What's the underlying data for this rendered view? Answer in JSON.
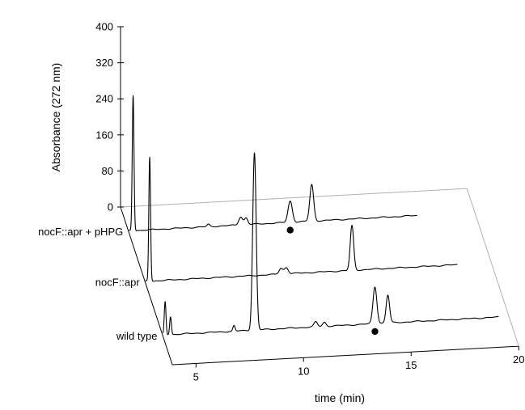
{
  "chart_data": {
    "type": "line",
    "subtype": "stacked-3d-chromatogram",
    "title": "",
    "xlabel": "time (min)",
    "ylabel": "Absorbance (272 nm)",
    "xlim": [
      3.9,
      20
    ],
    "ylim": [
      0,
      400
    ],
    "x_ticks": [
      5,
      10,
      15,
      20
    ],
    "y_ticks": [
      0,
      80,
      160,
      240,
      320,
      400
    ],
    "grid": false,
    "legend": "none",
    "series": [
      {
        "name": "nocF::apr + pHPG",
        "x_end": 17.3,
        "baseline": 3,
        "peaks": [
          {
            "t": 4.1,
            "h": 300,
            "w": 0.04
          },
          {
            "t": 7.6,
            "h": 5,
            "w": 0.06
          },
          {
            "t": 9.1,
            "h": 18,
            "w": 0.09
          },
          {
            "t": 9.35,
            "h": 15,
            "w": 0.08
          },
          {
            "t": 11.4,
            "h": 47,
            "w": 0.1
          },
          {
            "t": 12.4,
            "h": 81,
            "w": 0.09
          }
        ],
        "marker": {
          "x": 11.4,
          "symbol": "filled-circle"
        }
      },
      {
        "name": "nocF::apr",
        "x_end": 18.4,
        "baseline": 3,
        "peaks": [
          {
            "t": 4.1,
            "h": 275,
            "w": 0.04
          },
          {
            "t": 10.2,
            "h": 13,
            "w": 0.09
          },
          {
            "t": 10.45,
            "h": 14,
            "w": 0.09
          },
          {
            "t": 13.5,
            "h": 99,
            "w": 0.08
          }
        ]
      },
      {
        "name": "wild type",
        "x_end": 19.5,
        "baseline": 3,
        "peaks": [
          {
            "t": 4.0,
            "h": 73,
            "w": 0.04
          },
          {
            "t": 4.25,
            "h": 40,
            "w": 0.04
          },
          {
            "t": 7.2,
            "h": 12,
            "w": 0.05
          },
          {
            "t": 8.15,
            "h": 393,
            "w": 0.08
          },
          {
            "t": 11.0,
            "h": 11,
            "w": 0.08
          },
          {
            "t": 11.4,
            "h": 9,
            "w": 0.08
          },
          {
            "t": 13.75,
            "h": 82,
            "w": 0.09
          },
          {
            "t": 14.35,
            "h": 62,
            "w": 0.08
          }
        ],
        "marker": {
          "x": 13.75,
          "symbol": "filled-circle"
        }
      }
    ]
  }
}
